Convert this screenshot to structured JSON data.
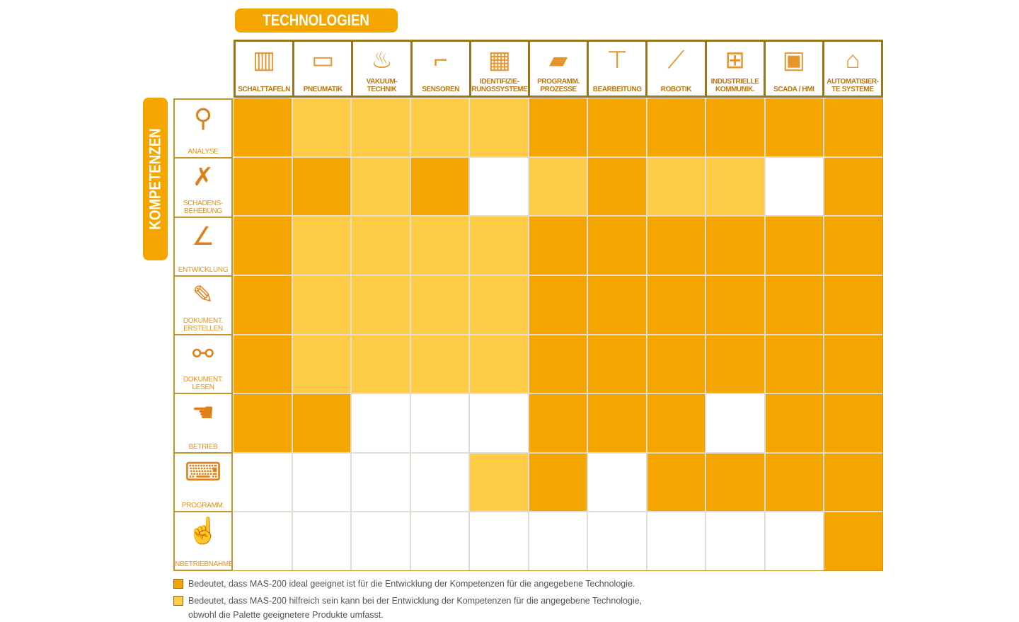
{
  "chart_data": {
    "type": "heatmap",
    "title": "TECHNOLOGIEN",
    "ylabel": "KOMPETENZEN",
    "columns": [
      {
        "label": "SCHALTTAFELN",
        "icon": "control-cabinet-icon"
      },
      {
        "label": "PNEUMATIK",
        "icon": "pneumatic-cylinder-icon"
      },
      {
        "label": "VAKUUM-\nTECHNIK",
        "icon": "vacuum-gripper-icon"
      },
      {
        "label": "SENSOREN",
        "icon": "sensor-icon"
      },
      {
        "label": "IDENTIFIZIE-\nRUNGSSYSTEME",
        "icon": "qr-code-icon"
      },
      {
        "label": "PROGRAMM.\nPROZESSE",
        "icon": "plc-icon"
      },
      {
        "label": "BEARBEITUNG",
        "icon": "machining-icon"
      },
      {
        "label": "ROBOTIK",
        "icon": "robot-arm-icon"
      },
      {
        "label": "INDUSTRIELLE\nKOMMUNIK.",
        "icon": "network-icon"
      },
      {
        "label": "SCADA / HMI",
        "icon": "monitor-icon"
      },
      {
        "label": "AUTOMATISIER-\nTE SYSTEME",
        "icon": "automated-system-icon"
      }
    ],
    "rows": [
      {
        "label": "ANALYSE",
        "icon": "magnifier-book-icon"
      },
      {
        "label": "SCHADENS-\nBEHEBUNG",
        "icon": "tools-icon"
      },
      {
        "label": "ENTWICKLUNG",
        "icon": "drafting-icon"
      },
      {
        "label": "DOKUMENT.\nERSTELLEN",
        "icon": "pen-book-icon"
      },
      {
        "label": "DOKUMENT.\nLESEN",
        "icon": "glasses-book-icon"
      },
      {
        "label": "BETRIEB",
        "icon": "hand-lever-icon"
      },
      {
        "label": "PROGRAMM.",
        "icon": "laptop-icon"
      },
      {
        "label": "INBETRIEBNAHME",
        "icon": "finger-button-icon"
      }
    ],
    "levels": {
      "2": "ideal geeignet",
      "1": "hilfreich",
      "0": "nicht markiert"
    },
    "values": [
      [
        2,
        1,
        1,
        1,
        1,
        2,
        2,
        2,
        2,
        2,
        2
      ],
      [
        2,
        2,
        1,
        2,
        0,
        1,
        2,
        1,
        1,
        0,
        2
      ],
      [
        2,
        1,
        1,
        1,
        1,
        2,
        2,
        2,
        2,
        2,
        2
      ],
      [
        2,
        1,
        1,
        1,
        1,
        2,
        2,
        2,
        2,
        2,
        2
      ],
      [
        2,
        1,
        1,
        1,
        1,
        2,
        2,
        2,
        2,
        2,
        2
      ],
      [
        2,
        2,
        0,
        0,
        0,
        2,
        2,
        2,
        0,
        2,
        2
      ],
      [
        0,
        0,
        0,
        0,
        1,
        2,
        0,
        2,
        2,
        2,
        2
      ],
      [
        0,
        0,
        0,
        0,
        0,
        0,
        0,
        0,
        0,
        0,
        2
      ]
    ]
  },
  "colors": {
    "ideal": "#F5A500",
    "helpful": "#FDCB45",
    "none": "#FFFFFF",
    "accent": "#F5A500"
  },
  "legend": [
    {
      "level": 2,
      "text": "Bedeutet, dass MAS-200 ideal geeignet ist für die Entwicklung der Kompetenzen für die angegebene Technologie."
    },
    {
      "level": 1,
      "text": "Bedeutet, dass MAS-200 hilfreich sein kann bei der Entwicklung der Kompetenzen für die angegebene Technologie,\nobwohl die Palette geeignetere Produkte umfasst."
    }
  ]
}
